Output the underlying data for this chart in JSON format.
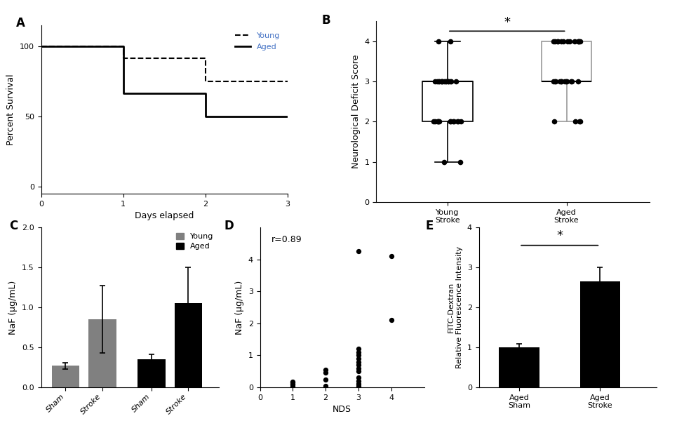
{
  "panel_A": {
    "label": "A",
    "young_x": [
      0,
      1,
      1,
      2,
      2,
      3
    ],
    "young_y": [
      100,
      100,
      91.7,
      91.7,
      75,
      75
    ],
    "aged_x": [
      0,
      1,
      1,
      2,
      2,
      3
    ],
    "aged_y": [
      100,
      100,
      66.7,
      66.7,
      50,
      50
    ],
    "xlabel": "Days elapsed",
    "ylabel": "Percent Survival",
    "ylim": [
      -5,
      115
    ],
    "xlim": [
      0,
      3
    ],
    "yticks": [
      0,
      50,
      100
    ],
    "xticks": [
      0,
      1,
      2,
      3
    ]
  },
  "panel_B": {
    "label": "B",
    "young_data": [
      1,
      1,
      2,
      2,
      2,
      2,
      2,
      2,
      2,
      2,
      2,
      2,
      2,
      2,
      2,
      3,
      3,
      3,
      3,
      3,
      3,
      3,
      3,
      3,
      3,
      3,
      3,
      3,
      3,
      3,
      4,
      4
    ],
    "aged_data": [
      2,
      2,
      2,
      2,
      3,
      3,
      3,
      3,
      3,
      3,
      3,
      3,
      3,
      3,
      3,
      3,
      4,
      4,
      4,
      4,
      4,
      4,
      4,
      4,
      4,
      4,
      4,
      4,
      4
    ],
    "ylabel": "Neurological Deficit Score",
    "ylim": [
      0,
      4.5
    ],
    "yticks": [
      0,
      1,
      2,
      3,
      4
    ],
    "categories": [
      "Young\nStroke",
      "Aged\nStroke"
    ],
    "significance": "*"
  },
  "panel_C": {
    "label": "C",
    "categories": [
      "Sham",
      "Stroke",
      "Sham",
      "Stroke"
    ],
    "values": [
      0.27,
      0.85,
      0.35,
      1.05
    ],
    "errors": [
      0.04,
      0.42,
      0.06,
      0.45
    ],
    "colors": [
      "#808080",
      "#808080",
      "#000000",
      "#000000"
    ],
    "ylabel": "NaF (µg/mL)",
    "ylim": [
      0,
      2.0
    ],
    "yticks": [
      0.0,
      0.5,
      1.0,
      1.5,
      2.0
    ],
    "legend_labels": [
      "Young",
      "Aged"
    ],
    "legend_colors": [
      "#808080",
      "#000000"
    ]
  },
  "panel_D": {
    "label": "D",
    "scatter_x": [
      1,
      1,
      1,
      1,
      1,
      2,
      2,
      2,
      2,
      3,
      3,
      3,
      3,
      3,
      3,
      3,
      3,
      3,
      3,
      3,
      3,
      3,
      4,
      4
    ],
    "scatter_y": [
      0.05,
      0.08,
      0.12,
      0.15,
      0.18,
      0.05,
      0.25,
      0.45,
      0.55,
      0.05,
      0.1,
      0.2,
      0.3,
      0.5,
      0.6,
      0.7,
      0.8,
      0.9,
      1.0,
      1.1,
      1.2,
      4.25,
      2.1,
      4.1
    ],
    "xlabel": "NDS",
    "ylabel": "NaF (µg/mL)",
    "xlim": [
      0,
      5
    ],
    "ylim": [
      0,
      5
    ],
    "yticks": [
      0,
      1,
      2,
      3,
      4
    ],
    "xticks": [
      0,
      1,
      2,
      3,
      4
    ],
    "annotation": "r=0.89"
  },
  "panel_E": {
    "label": "E",
    "categories": [
      "Aged\nSham",
      "Aged\nStroke"
    ],
    "values": [
      1.0,
      2.65
    ],
    "errors": [
      0.08,
      0.35
    ],
    "colors": [
      "#000000",
      "#000000"
    ],
    "ylabel": "FITC-Dextran\nRelative Fluorescence Intensity",
    "ylim": [
      0,
      4
    ],
    "yticks": [
      0,
      1,
      2,
      3,
      4
    ],
    "significance": "*"
  }
}
